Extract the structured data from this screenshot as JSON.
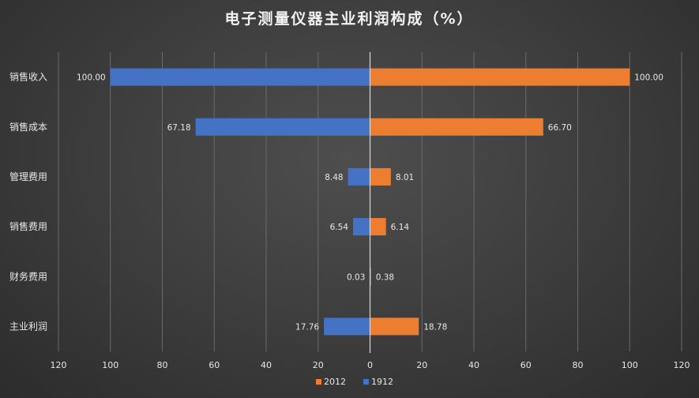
{
  "chart_data": {
    "type": "bar",
    "orientation": "horizontal-butterfly",
    "title": "电子测量仪器主业利润构成（%）",
    "categories": [
      "销售收入",
      "销售成本",
      "管理费用",
      "销售费用",
      "财务费用",
      "主业利润"
    ],
    "series": [
      {
        "name": "2012",
        "side": "right",
        "color": "#ed7d31",
        "values": [
          100.0,
          66.7,
          8.01,
          6.14,
          0.38,
          18.78
        ]
      },
      {
        "name": "1912",
        "side": "left",
        "color": "#4472c4",
        "values": [
          100.0,
          67.18,
          8.48,
          6.54,
          0.03,
          17.76
        ]
      }
    ],
    "xlim": [
      -120,
      120
    ],
    "tick_labels": [
      "120",
      "100",
      "80",
      "60",
      "40",
      "20",
      "0",
      "20",
      "40",
      "60",
      "80",
      "100",
      "120"
    ],
    "grid": true,
    "legend": "bottom"
  }
}
